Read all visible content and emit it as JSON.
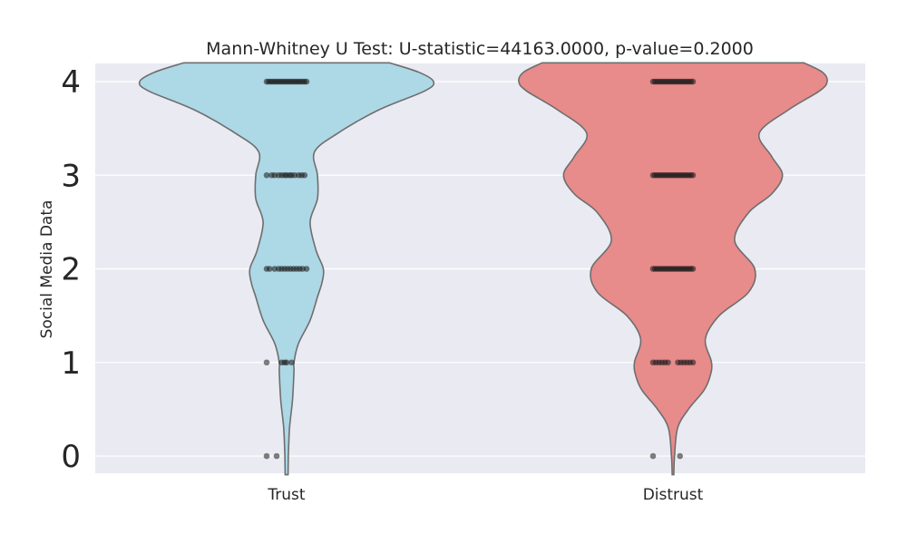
{
  "chart_data": {
    "type": "violin",
    "title": "Mann-Whitney U Test: U-statistic=44163.0000, p-value=0.2000",
    "xlabel": "",
    "ylabel": "Social Media Data",
    "categories": [
      "Trust",
      "Distrust"
    ],
    "ylim": [
      -0.2,
      4.2
    ],
    "yticks": [
      0,
      1,
      2,
      3,
      4
    ],
    "grid": true,
    "background": "#eaeaf2",
    "series": [
      {
        "color": "#add8e6",
        "density": [
          [
            -0.2,
            0.01
          ],
          [
            0.0,
            0.012
          ],
          [
            0.3,
            0.02
          ],
          [
            0.6,
            0.04
          ],
          [
            0.9,
            0.05
          ],
          [
            1.0,
            0.05
          ],
          [
            1.2,
            0.08
          ],
          [
            1.45,
            0.16
          ],
          [
            1.7,
            0.21
          ],
          [
            1.85,
            0.24
          ],
          [
            2.0,
            0.25
          ],
          [
            2.2,
            0.2
          ],
          [
            2.5,
            0.16
          ],
          [
            2.75,
            0.21
          ],
          [
            3.0,
            0.21
          ],
          [
            3.25,
            0.19
          ],
          [
            3.45,
            0.35
          ],
          [
            3.7,
            0.63
          ],
          [
            3.9,
            0.94
          ],
          [
            4.0,
            1.0
          ],
          [
            4.1,
            0.9
          ],
          [
            4.2,
            0.7
          ]
        ],
        "points": [
          {
            "y": 4,
            "x": [
              -0.2,
              -0.18,
              -0.16,
              -0.14,
              -0.12,
              -0.1,
              -0.08,
              -0.06,
              -0.04,
              -0.02,
              0.0,
              0.02,
              0.04,
              0.06,
              0.08,
              0.1,
              0.12,
              0.14,
              0.16,
              0.18,
              0.2
            ]
          },
          {
            "y": 3,
            "x": [
              -0.2,
              -0.15,
              -0.12,
              -0.08,
              -0.05,
              -0.02,
              0.0,
              0.03,
              0.05,
              0.08,
              0.12,
              0.15,
              0.18
            ]
          },
          {
            "y": 2,
            "x": [
              -0.2,
              -0.17,
              -0.12,
              -0.08,
              -0.05,
              -0.02,
              0.01,
              0.04,
              0.07,
              0.1,
              0.13,
              0.16,
              0.2
            ]
          },
          {
            "y": 1,
            "x": [
              -0.2,
              -0.05,
              -0.02,
              0.0,
              0.05
            ]
          },
          {
            "y": 0,
            "x": [
              -0.2,
              -0.1
            ]
          }
        ]
      },
      {
        "color": "#e88b8b",
        "density": [
          [
            -0.2,
            0.005
          ],
          [
            0.0,
            0.01
          ],
          [
            0.3,
            0.03
          ],
          [
            0.5,
            0.1
          ],
          [
            0.7,
            0.2
          ],
          [
            0.85,
            0.24
          ],
          [
            1.0,
            0.25
          ],
          [
            1.25,
            0.21
          ],
          [
            1.5,
            0.3
          ],
          [
            1.75,
            0.49
          ],
          [
            2.0,
            0.53
          ],
          [
            2.3,
            0.4
          ],
          [
            2.6,
            0.49
          ],
          [
            2.8,
            0.64
          ],
          [
            3.0,
            0.71
          ],
          [
            3.2,
            0.64
          ],
          [
            3.45,
            0.56
          ],
          [
            3.7,
            0.75
          ],
          [
            3.9,
            0.95
          ],
          [
            4.0,
            1.0
          ],
          [
            4.1,
            0.97
          ],
          [
            4.2,
            0.85
          ]
        ],
        "points": [
          {
            "y": 4,
            "x": [
              -0.2,
              -0.18,
              -0.16,
              -0.14,
              -0.12,
              -0.1,
              -0.08,
              -0.06,
              -0.04,
              -0.02,
              0.0,
              0.02,
              0.04,
              0.06,
              0.08,
              0.1,
              0.12,
              0.14,
              0.16,
              0.18,
              0.2
            ]
          },
          {
            "y": 3,
            "x": [
              -0.2,
              -0.18,
              -0.16,
              -0.14,
              -0.12,
              -0.1,
              -0.08,
              -0.06,
              -0.04,
              -0.02,
              0.0,
              0.02,
              0.04,
              0.06,
              0.08,
              0.1,
              0.12,
              0.14,
              0.16,
              0.18,
              0.2
            ]
          },
          {
            "y": 2,
            "x": [
              -0.2,
              -0.18,
              -0.16,
              -0.14,
              -0.12,
              -0.1,
              -0.08,
              -0.06,
              -0.04,
              -0.02,
              0.0,
              0.02,
              0.04,
              0.06,
              0.08,
              0.1,
              0.12,
              0.14,
              0.16,
              0.18,
              0.2
            ]
          },
          {
            "y": 1,
            "x": [
              -0.2,
              -0.17,
              -0.14,
              -0.11,
              -0.08,
              -0.05,
              0.05,
              0.08,
              0.11,
              0.14,
              0.17,
              0.2
            ]
          },
          {
            "y": 0,
            "x": [
              -0.2,
              0.07
            ]
          }
        ]
      }
    ]
  }
}
